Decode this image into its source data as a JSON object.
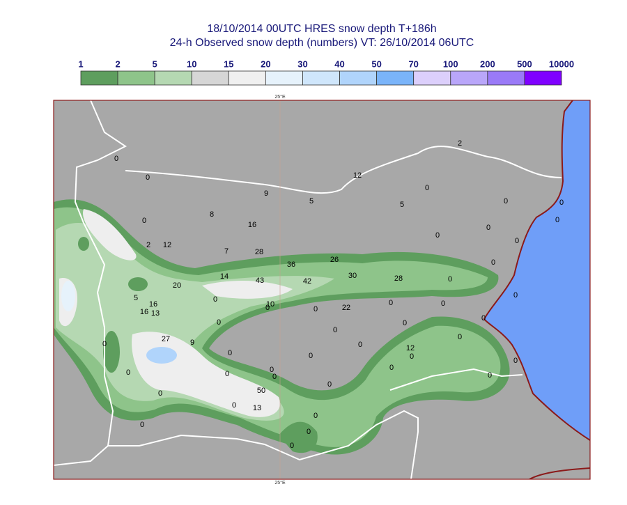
{
  "title": {
    "line1": "18/10/2014 00UTC HRES snow depth T+186h",
    "line2": "24-h Observed snow depth (numbers) VT: 26/10/2014 06UTC"
  },
  "legend": {
    "labels": [
      1,
      2,
      5,
      10,
      15,
      20,
      30,
      40,
      50,
      70,
      100,
      200,
      500,
      10000
    ],
    "colors": [
      "#5e9e5e",
      "#8ec48a",
      "#b5d8b2",
      "#d6d6d6",
      "#f0f0f0",
      "#e6f2fb",
      "#cfe6fb",
      "#b0d4fb",
      "#7ab4f9",
      "#dccffb",
      "#b9a6f9",
      "#9a7af7",
      "#7f00ff"
    ]
  },
  "meridian": "25°E",
  "observations": [
    0,
    0,
    9,
    5,
    12,
    2,
    0,
    5,
    0,
    0,
    0,
    0,
    8,
    16,
    0,
    0,
    0,
    2,
    12,
    7,
    28,
    36,
    26,
    0,
    14,
    43,
    42,
    30,
    28,
    0,
    20,
    5,
    16,
    16,
    13,
    0,
    10,
    0,
    0,
    22,
    0,
    0,
    0,
    0,
    0,
    0,
    0,
    27,
    9,
    0,
    0,
    0,
    0,
    12,
    0,
    0,
    0,
    0,
    0,
    0,
    0,
    0,
    0,
    50,
    0,
    0,
    0,
    13,
    0,
    0,
    0,
    0
  ]
}
